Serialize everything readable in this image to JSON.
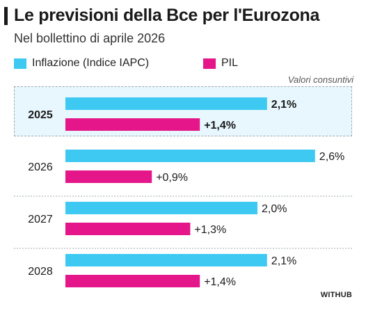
{
  "title": "Le previsioni della Bce per l'Eurozona",
  "subtitle": "Nel bollettino di aprile 2026",
  "note": "Valori consuntivi",
  "credit": "WITHUB",
  "colors": {
    "inflation": "#3ec9f2",
    "gdp": "#e4168a",
    "highlight_bg": "#e8f7fd",
    "divider": "#9fa9b0"
  },
  "chart_data": {
    "type": "bar",
    "orientation": "horizontal",
    "categories": [
      "2025",
      "2026",
      "2027",
      "2028"
    ],
    "highlighted_category": "2025",
    "series": [
      {
        "name": "Inflazione (Indice IAPC)",
        "values": [
          2.1,
          2.6,
          2.0,
          2.1
        ],
        "labels": [
          "2,1%",
          "2,6%",
          "2,0%",
          "2,1%"
        ]
      },
      {
        "name": "PIL",
        "values": [
          1.4,
          0.9,
          1.3,
          1.4
        ],
        "labels": [
          "+1,4%",
          "+0,9%",
          "+1,3%",
          "+1,4%"
        ]
      }
    ],
    "xlim": [
      0,
      2.6
    ],
    "grid": false,
    "legend": "top-left"
  }
}
